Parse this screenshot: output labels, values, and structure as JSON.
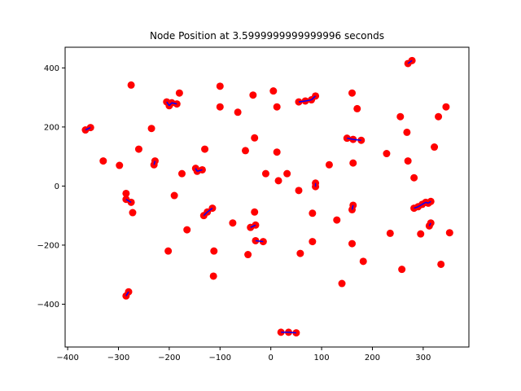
{
  "chart_data": {
    "type": "scatter",
    "title": "Node Position at 3.5999999999999996 seconds",
    "xlabel": "",
    "ylabel": "",
    "xlim": [
      -405,
      390
    ],
    "ylim": [
      -545,
      470
    ],
    "xticks": [
      -400,
      -300,
      -200,
      -100,
      0,
      100,
      200,
      300
    ],
    "yticks": [
      -400,
      -200,
      0,
      200,
      400
    ],
    "grid": false,
    "marker_color": "#ff0000",
    "edge_color": "#0000ff",
    "points": [
      [
        -365,
        190
      ],
      [
        -355,
        198
      ],
      [
        -330,
        85
      ],
      [
        -298,
        70
      ],
      [
        -285,
        -25
      ],
      [
        -285,
        -45
      ],
      [
        -275,
        -55
      ],
      [
        -272,
        -90
      ],
      [
        -285,
        -372
      ],
      [
        -280,
        -358
      ],
      [
        -275,
        342
      ],
      [
        -260,
        125
      ],
      [
        -235,
        195
      ],
      [
        -230,
        72
      ],
      [
        -228,
        85
      ],
      [
        -205,
        285
      ],
      [
        -200,
        272
      ],
      [
        -195,
        282
      ],
      [
        -185,
        278
      ],
      [
        -180,
        315
      ],
      [
        -175,
        42
      ],
      [
        -190,
        -32
      ],
      [
        -202,
        -220
      ],
      [
        -165,
        -148
      ],
      [
        -148,
        60
      ],
      [
        -145,
        50
      ],
      [
        -135,
        55
      ],
      [
        -130,
        125
      ],
      [
        -132,
        -100
      ],
      [
        -125,
        -88
      ],
      [
        -115,
        -75
      ],
      [
        -112,
        -220
      ],
      [
        -113,
        -305
      ],
      [
        -100,
        338
      ],
      [
        -100,
        268
      ],
      [
        -75,
        -125
      ],
      [
        -65,
        250
      ],
      [
        -50,
        120
      ],
      [
        -45,
        -232
      ],
      [
        -40,
        -140
      ],
      [
        -35,
        308
      ],
      [
        -32,
        163
      ],
      [
        -32,
        -88
      ],
      [
        -30,
        -132
      ],
      [
        -30,
        -185
      ],
      [
        -15,
        -188
      ],
      [
        -10,
        42
      ],
      [
        5,
        322
      ],
      [
        12,
        268
      ],
      [
        12,
        115
      ],
      [
        15,
        18
      ],
      [
        20,
        -495
      ],
      [
        32,
        42
      ],
      [
        35,
        -495
      ],
      [
        50,
        -497
      ],
      [
        55,
        285
      ],
      [
        55,
        -15
      ],
      [
        58,
        -228
      ],
      [
        68,
        288
      ],
      [
        80,
        292
      ],
      [
        88,
        305
      ],
      [
        82,
        -92
      ],
      [
        82,
        -188
      ],
      [
        88,
        10
      ],
      [
        88,
        -2
      ],
      [
        115,
        72
      ],
      [
        130,
        -115
      ],
      [
        140,
        -330
      ],
      [
        150,
        162
      ],
      [
        160,
        315
      ],
      [
        162,
        158
      ],
      [
        162,
        78
      ],
      [
        160,
        -80
      ],
      [
        162,
        -65
      ],
      [
        160,
        -195
      ],
      [
        170,
        262
      ],
      [
        178,
        155
      ],
      [
        182,
        -255
      ],
      [
        228,
        110
      ],
      [
        235,
        -160
      ],
      [
        255,
        235
      ],
      [
        258,
        -282
      ],
      [
        270,
        415
      ],
      [
        278,
        425
      ],
      [
        268,
        182
      ],
      [
        270,
        85
      ],
      [
        282,
        28
      ],
      [
        282,
        -75
      ],
      [
        290,
        -70
      ],
      [
        298,
        -62
      ],
      [
        305,
        -55
      ],
      [
        295,
        -162
      ],
      [
        310,
        -58
      ],
      [
        315,
        -52
      ],
      [
        312,
        -135
      ],
      [
        315,
        -125
      ],
      [
        322,
        132
      ],
      [
        330,
        235
      ],
      [
        335,
        -265
      ],
      [
        345,
        268
      ],
      [
        352,
        -158
      ]
    ],
    "edges": [
      [
        [
          -365,
          190
        ],
        [
          -355,
          198
        ]
      ],
      [
        [
          -285,
          -45
        ],
        [
          -275,
          -55
        ]
      ],
      [
        [
          -285,
          -372
        ],
        [
          -280,
          -358
        ]
      ],
      [
        [
          -230,
          72
        ],
        [
          -228,
          85
        ]
      ],
      [
        [
          -205,
          285
        ],
        [
          -200,
          272
        ]
      ],
      [
        [
          -200,
          272
        ],
        [
          -195,
          282
        ]
      ],
      [
        [
          -195,
          282
        ],
        [
          -185,
          278
        ]
      ],
      [
        [
          -148,
          60
        ],
        [
          -145,
          50
        ]
      ],
      [
        [
          -145,
          50
        ],
        [
          -135,
          55
        ]
      ],
      [
        [
          -132,
          -100
        ],
        [
          -125,
          -88
        ]
      ],
      [
        [
          -125,
          -88
        ],
        [
          -115,
          -75
        ]
      ],
      [
        [
          -40,
          -140
        ],
        [
          -30,
          -132
        ]
      ],
      [
        [
          -30,
          -185
        ],
        [
          -15,
          -188
        ]
      ],
      [
        [
          20,
          -495
        ],
        [
          35,
          -495
        ]
      ],
      [
        [
          35,
          -495
        ],
        [
          50,
          -497
        ]
      ],
      [
        [
          55,
          285
        ],
        [
          68,
          288
        ]
      ],
      [
        [
          68,
          288
        ],
        [
          80,
          292
        ]
      ],
      [
        [
          80,
          292
        ],
        [
          88,
          305
        ]
      ],
      [
        [
          88,
          10
        ],
        [
          88,
          -2
        ]
      ],
      [
        [
          150,
          162
        ],
        [
          162,
          158
        ]
      ],
      [
        [
          162,
          158
        ],
        [
          178,
          155
        ]
      ],
      [
        [
          160,
          -80
        ],
        [
          162,
          -65
        ]
      ],
      [
        [
          270,
          415
        ],
        [
          278,
          425
        ]
      ],
      [
        [
          282,
          -75
        ],
        [
          290,
          -70
        ]
      ],
      [
        [
          290,
          -70
        ],
        [
          298,
          -62
        ]
      ],
      [
        [
          298,
          -62
        ],
        [
          305,
          -55
        ]
      ],
      [
        [
          305,
          -55
        ],
        [
          310,
          -58
        ]
      ],
      [
        [
          310,
          -58
        ],
        [
          315,
          -52
        ]
      ],
      [
        [
          312,
          -135
        ],
        [
          315,
          -125
        ]
      ]
    ]
  }
}
